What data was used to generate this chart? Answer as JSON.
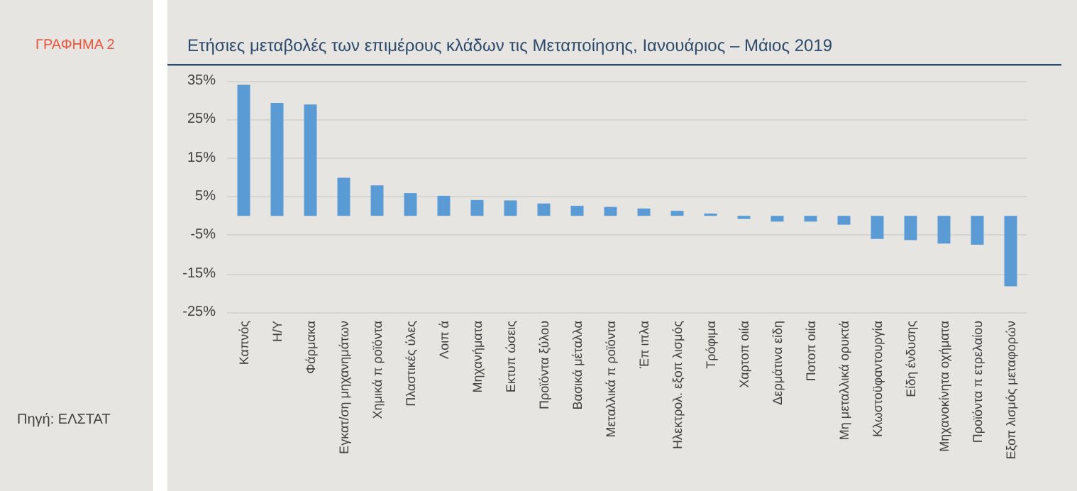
{
  "chart_data": {
    "type": "bar",
    "title": "Ετήσιες μεταβολές των επιμέρους κλάδων τις Μεταποίησης, Ιανουάριος – Μάιος 2019",
    "subtitle": "ΓΡΑΦΗΜΑ 2",
    "annotations": [
      "Πηγή: ΕΛΣΤΑΤ"
    ],
    "categories": [
      "Καπνός",
      "Η/Υ",
      "Φάρμακα",
      "Εγκατ/ση μηχανημάτων",
      "Χημικά π ροϊόντα",
      "Πλαστικές ύλες",
      "Λοιπ ά",
      "Μηχανήματα",
      "Εκτυπ ώσεις",
      "Προϊόντα ξύλου",
      "Βασικά μέταλλα",
      "Μεταλλικά π ροϊόντα",
      "Έπ ιπλα",
      "Ηλεκτρολ. εξοπ λισμός",
      "Τρόφιμα",
      "Χαρτοπ οιία",
      "Δερμάτινα είδη",
      "Ποτοπ οιία",
      "Μη μεταλλικά ορυκτά",
      "Κλωστοϋφαντουργία",
      "Είδη ένδυσης",
      "Μηχανοκίνητα οχήματα",
      "Προϊόντα π ετρελαίου",
      "Εξοπ λισμός μεταφορών"
    ],
    "values": [
      34.0,
      29.3,
      28.9,
      9.9,
      7.9,
      5.9,
      5.2,
      4.1,
      4.0,
      3.2,
      2.6,
      2.3,
      1.9,
      1.3,
      0.6,
      -0.8,
      -1.5,
      -1.5,
      -2.3,
      -6.0,
      -6.3,
      -7.2,
      -7.5,
      -18.3
    ],
    "color": "#5b9bd5",
    "ylim": [
      -25,
      35
    ],
    "yticks": [
      {
        "value": 35,
        "label": "35%"
      },
      {
        "value": 25,
        "label": "25%"
      },
      {
        "value": 15,
        "label": "15%"
      },
      {
        "value": 5,
        "label": "5%"
      },
      {
        "value": -5,
        "label": "-5%"
      },
      {
        "value": -15,
        "label": "-15%"
      },
      {
        "value": -25,
        "label": "-25%"
      }
    ],
    "grid": "y"
  }
}
